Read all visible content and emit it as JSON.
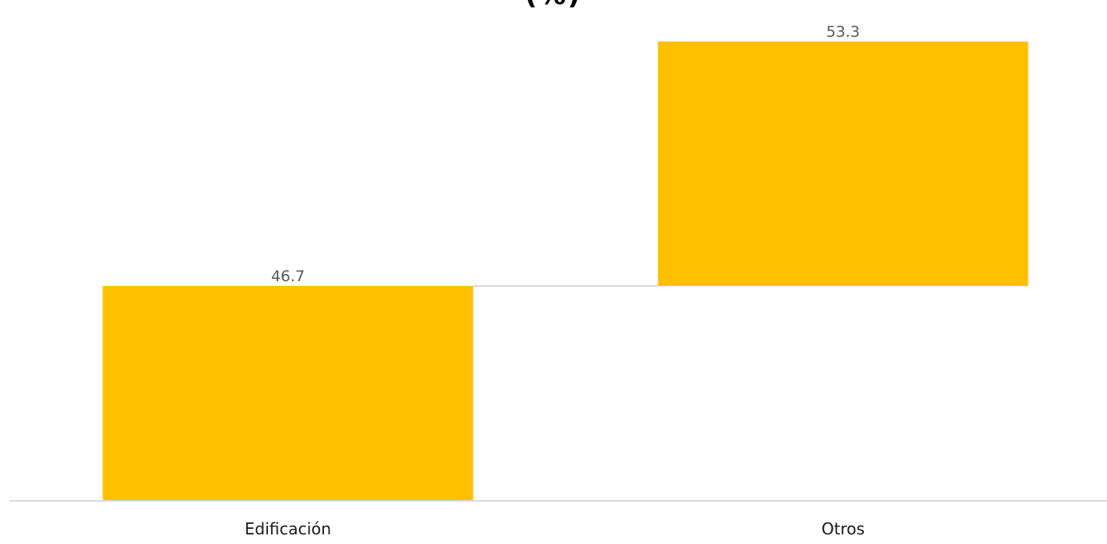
{
  "chart_data": {
    "type": "bar",
    "subtype": "waterfall",
    "title": "(%)",
    "xlabel": "",
    "ylabel": "",
    "categories": [
      "Edificación",
      "Otros"
    ],
    "values": [
      46.7,
      53.3
    ],
    "data_labels": [
      "46.7",
      "53.3"
    ],
    "ylim": [
      0,
      100
    ],
    "grid": false,
    "legend": "none",
    "colors": {
      "bar": "#FFC000",
      "axis": "#D9D9D9",
      "connector": "#D9D9D9",
      "data_label": "#595959",
      "tick_label": "#1A1A1A"
    }
  }
}
